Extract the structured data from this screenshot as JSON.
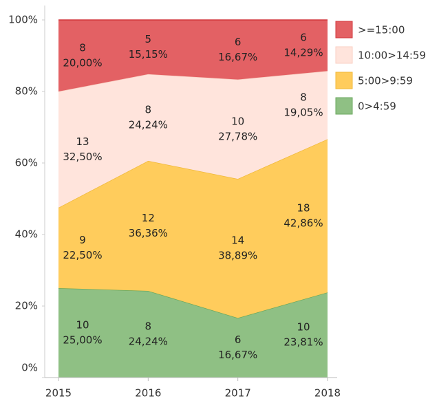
{
  "chart_data": {
    "type": "stacked-area-100",
    "categories": [
      "2015",
      "2016",
      "2017",
      "2018"
    ],
    "ylim": [
      0,
      100
    ],
    "yticks": [
      {
        "value": 0,
        "label": "0%"
      },
      {
        "value": 20,
        "label": "20%"
      },
      {
        "value": 40,
        "label": "40%"
      },
      {
        "value": 60,
        "label": "60%"
      },
      {
        "value": 80,
        "label": "80%"
      },
      {
        "value": 100,
        "label": "100%"
      }
    ],
    "legend": "right",
    "series": [
      {
        "name": "0>4:59",
        "color": "#8fc084",
        "line": "#6aa75c",
        "values": [
          25.0,
          24.24,
          16.67,
          23.81
        ],
        "value_labels": [
          "25,00%",
          "24,24%",
          "16,67%",
          "23,81%"
        ],
        "counts": [
          10,
          8,
          6,
          10
        ]
      },
      {
        "name": "5:00>9:59",
        "color": "#ffcc5c",
        "line": "#f0b93a",
        "values": [
          22.5,
          36.36,
          38.89,
          42.86
        ],
        "value_labels": [
          "22,50%",
          "36,36%",
          "38,89%",
          "42,86%"
        ],
        "counts": [
          9,
          12,
          14,
          18
        ]
      },
      {
        "name": "10:00>14:59",
        "color": "#ffe4dc",
        "line": "#f8cfc3",
        "values": [
          32.5,
          24.24,
          27.78,
          19.05
        ],
        "value_labels": [
          "32,50%",
          "24,24%",
          "27,78%",
          "19,05%"
        ],
        "counts": [
          13,
          8,
          10,
          8
        ]
      },
      {
        "name": ">=15:00",
        "color": "#e36164",
        "line": "#d2373b",
        "values": [
          20.0,
          15.15,
          16.67,
          14.29
        ],
        "value_labels": [
          "20,00%",
          "15,15%",
          "16,67%",
          "14,29%"
        ],
        "counts": [
          8,
          5,
          6,
          6
        ]
      }
    ]
  }
}
